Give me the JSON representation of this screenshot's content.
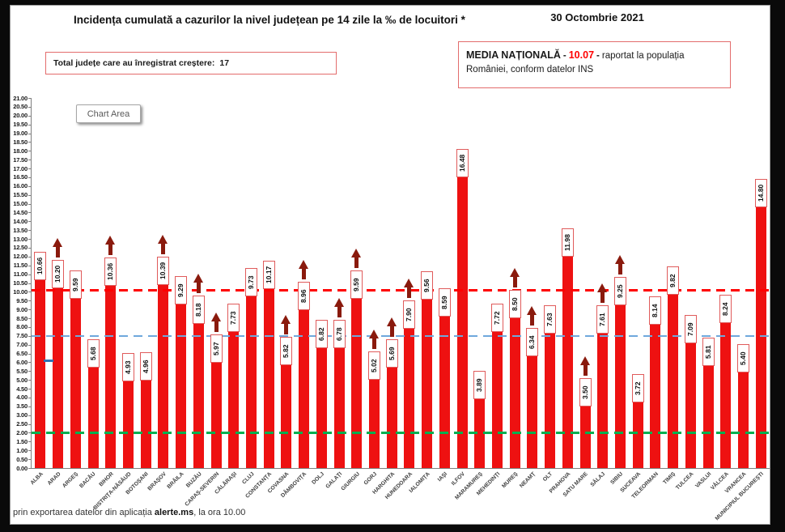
{
  "header": {
    "title": "Incidența cumulată a cazurilor la nivel județean pe 14 zile la ‰ de locuitori *",
    "date": "30 Octombrie 2021",
    "growth_box": {
      "label": "Total județe care au înregistrat creștere:",
      "value": "17"
    },
    "media_box": {
      "title": "MEDIA NAȚIONALĂ",
      "sep": "-",
      "value": "10.07",
      "after": "raportat la populația",
      "line2": "României, conform datelor INS"
    }
  },
  "chart_tooltip": "Chart Area",
  "footer": {
    "text_before": "prin exportarea datelor din aplicația ",
    "bold": "alerte.ms",
    "text_after": ", la ora 10.00"
  },
  "chart_data": {
    "type": "bar",
    "title": "Incidența cumulată a cazurilor la nivel județean pe 14 zile la ‰ de locuitori *",
    "xlabel": "",
    "ylabel": "",
    "ylim": [
      0,
      21
    ],
    "y_axis": {
      "min": 0.0,
      "max": 21.0,
      "step": 0.5,
      "tick_format": "0.00"
    },
    "grid": false,
    "legend": false,
    "bar_color": "#ee1111",
    "value_label_border_color": "#e05b5b",
    "arrow_color": "#8a1a0d",
    "national_average": 10.07,
    "categories": [
      "ALBA",
      "ARAD",
      "ARGEȘ",
      "BACĂU",
      "BIHOR",
      "BISTRIȚA-NĂSĂUD",
      "BOTOȘANI",
      "BRAȘOV",
      "BRĂILA",
      "BUZĂU",
      "CARAȘ-SEVERIN",
      "CĂLĂRAȘI",
      "CLUJ",
      "CONSTANȚA",
      "COVASNA",
      "DÂMBOVIȚA",
      "DOLJ",
      "GALAȚI",
      "GIURGIU",
      "GORJ",
      "HARGHITA",
      "HUNEDOARA",
      "IALOMIȚA",
      "IAȘI",
      "ILFOV",
      "MARAMUREȘ",
      "MEHEDINȚI",
      "MUREȘ",
      "NEAMȚ",
      "OLT",
      "PRAHOVA",
      "SATU MARE",
      "SĂLAJ",
      "SIBIU",
      "SUCEAVA",
      "TELEORMAN",
      "TIMIȘ",
      "TULCEA",
      "VASLUI",
      "VÂLCEA",
      "VRANCEA",
      "MUNICIPIUL BUCUREȘTI"
    ],
    "values": [
      10.66,
      10.2,
      9.59,
      5.68,
      10.36,
      4.93,
      4.96,
      10.39,
      9.29,
      8.18,
      5.97,
      7.73,
      9.73,
      10.17,
      5.82,
      8.96,
      6.82,
      6.78,
      9.59,
      5.02,
      5.69,
      7.9,
      9.56,
      8.59,
      16.48,
      3.89,
      7.72,
      8.5,
      6.34,
      7.63,
      11.98,
      3.5,
      7.61,
      9.25,
      3.72,
      8.14,
      9.82,
      7.09,
      5.81,
      8.24,
      5.4,
      14.8
    ],
    "increases": [
      false,
      true,
      false,
      false,
      true,
      false,
      false,
      true,
      false,
      true,
      true,
      false,
      false,
      false,
      true,
      true,
      false,
      true,
      true,
      true,
      true,
      true,
      false,
      false,
      false,
      false,
      false,
      true,
      true,
      false,
      false,
      true,
      true,
      true,
      false,
      false,
      false,
      false,
      false,
      false,
      false,
      false
    ],
    "reference_lines": [
      {
        "name": "media-nationala-line",
        "value": 10.07,
        "color": "#ff0000",
        "style": "dashed"
      },
      {
        "name": "reference-line-blue",
        "value": 7.5,
        "color": "#6fa8dc",
        "style": "dashed"
      },
      {
        "name": "reference-line-green",
        "value": 2.0,
        "color": "#00b050",
        "style": "dashed"
      }
    ],
    "marker": {
      "name": "blue-dash-marker",
      "value": 6.1,
      "color": "#2e75b6"
    }
  }
}
